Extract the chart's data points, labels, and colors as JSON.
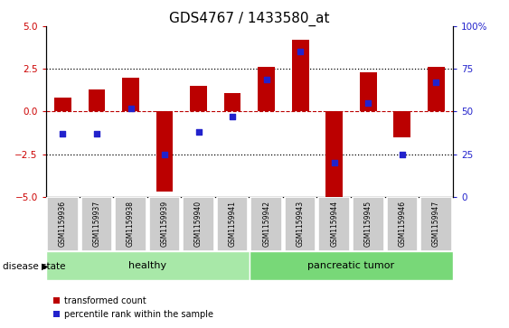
{
  "title": "GDS4767 / 1433580_at",
  "samples": [
    "GSM1159936",
    "GSM1159937",
    "GSM1159938",
    "GSM1159939",
    "GSM1159940",
    "GSM1159941",
    "GSM1159942",
    "GSM1159943",
    "GSM1159944",
    "GSM1159945",
    "GSM1159946",
    "GSM1159947"
  ],
  "red_values": [
    0.8,
    1.3,
    2.0,
    -4.7,
    1.5,
    1.1,
    2.6,
    4.2,
    -5.0,
    2.3,
    -1.5,
    2.6
  ],
  "blue_values": [
    37,
    37,
    52,
    25,
    38,
    47,
    69,
    85,
    20,
    55,
    25,
    67
  ],
  "red_color": "#bb0000",
  "blue_color": "#2222cc",
  "bar_width": 0.5,
  "ylim": [
    -5,
    5
  ],
  "y2lim": [
    0,
    100
  ],
  "yticks_left": [
    -5,
    -2.5,
    0,
    2.5,
    5
  ],
  "yticks_right": [
    0,
    25,
    50,
    75,
    100
  ],
  "hlines": [
    2.5,
    -2.5
  ],
  "healthy_label": "healthy",
  "tumor_label": "pancreatic tumor",
  "healthy_color": "#a8e8a8",
  "tumor_color": "#78d878",
  "disease_state_label": "disease state",
  "legend_red": "transformed count",
  "legend_blue": "percentile rank within the sample",
  "left_tick_color": "#cc0000",
  "right_tick_color": "#2222cc",
  "title_fontsize": 11,
  "axis_tick_fontsize": 7.5,
  "sample_fontsize": 5.5,
  "group_fontsize": 8,
  "legend_fontsize": 7,
  "ds_fontsize": 7.5
}
